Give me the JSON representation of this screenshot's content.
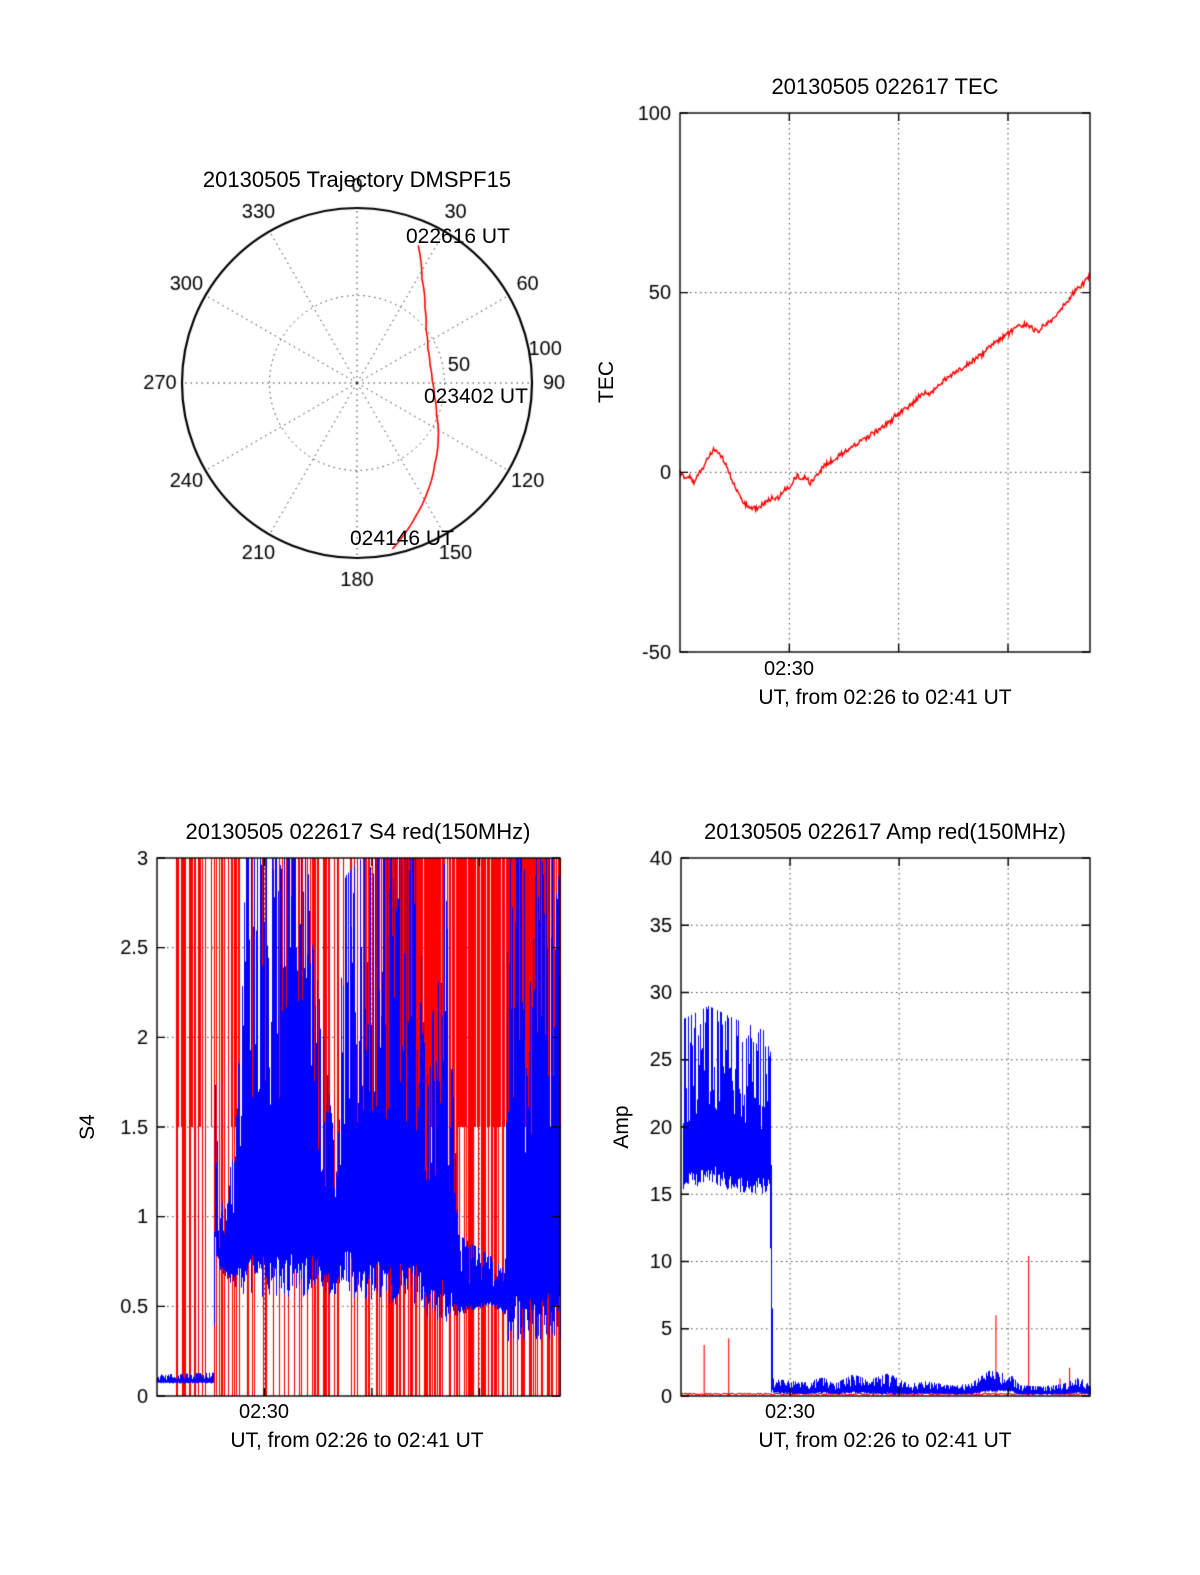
{
  "figure": {
    "background": "#ffffff"
  },
  "colors": {
    "red": "#ff0000",
    "blue": "#0000ff",
    "axis": "#000000",
    "grid": "#4a4a4a"
  },
  "chart_data": [
    {
      "id": "trajectory",
      "type": "line",
      "subtype": "polar",
      "title": "20130505 Trajectory DMSPF15",
      "angle_ticks_deg": [
        0,
        30,
        60,
        90,
        120,
        150,
        180,
        210,
        240,
        270,
        300,
        330
      ],
      "radius_ticks": [
        {
          "r": 50,
          "label": "50"
        },
        {
          "r": 100,
          "label": "100"
        }
      ],
      "rmax": 100,
      "series": [
        {
          "name": "satellite-track",
          "color": "#ff0000",
          "points_az_r": [
            [
              24,
              86
            ],
            [
              32,
              70
            ],
            [
              42,
              58
            ],
            [
              52,
              50
            ],
            [
              64,
              45
            ],
            [
              76,
              43
            ],
            [
              88,
              43
            ],
            [
              100,
              45
            ],
            [
              112,
              49
            ],
            [
              124,
              56
            ],
            [
              136,
              64
            ],
            [
              147,
              74
            ],
            [
              156,
              83
            ],
            [
              163,
              91
            ],
            [
              168,
              97
            ]
          ]
        }
      ],
      "annotations": [
        {
          "label": "022616 UT"
        },
        {
          "label": "023402 UT"
        },
        {
          "label": "024146 UT"
        }
      ]
    },
    {
      "id": "tec",
      "type": "line",
      "title": "20130505 022617 TEC",
      "ylabel": "TEC",
      "xlabel": "UT, from 02:26 to 02:41 UT",
      "x_minutes_range": [
        0,
        15
      ],
      "x_zero_label": "02:26",
      "ylim": [
        -50,
        100
      ],
      "yticks": [
        {
          "v": -50,
          "label": "-50"
        },
        {
          "v": 0,
          "label": "0"
        },
        {
          "v": 50,
          "label": "50"
        },
        {
          "v": 100,
          "label": "100"
        }
      ],
      "ygrid": [
        0,
        50
      ],
      "xticks": [
        {
          "min": 4,
          "label": "02:30"
        }
      ],
      "xgrid_min": [
        4,
        8,
        12
      ],
      "series": [
        {
          "name": "TEC",
          "color": "#ff0000",
          "noise": 0.7,
          "points": [
            [
              0,
              0
            ],
            [
              0.2,
              -2
            ],
            [
              0.35,
              -1
            ],
            [
              0.5,
              -3
            ],
            [
              0.65,
              -1
            ],
            [
              0.8,
              1
            ],
            [
              0.95,
              3
            ],
            [
              1.1,
              5
            ],
            [
              1.25,
              6.5
            ],
            [
              1.4,
              5.5
            ],
            [
              1.55,
              4
            ],
            [
              1.7,
              2
            ],
            [
              1.85,
              -1
            ],
            [
              2.0,
              -4
            ],
            [
              2.2,
              -7
            ],
            [
              2.4,
              -9
            ],
            [
              2.6,
              -10
            ],
            [
              2.8,
              -10
            ],
            [
              3.0,
              -9
            ],
            [
              3.2,
              -8
            ],
            [
              3.4,
              -7
            ],
            [
              3.6,
              -7
            ],
            [
              3.8,
              -5
            ],
            [
              4.0,
              -4
            ],
            [
              4.15,
              -2
            ],
            [
              4.3,
              -1
            ],
            [
              4.45,
              -2
            ],
            [
              4.6,
              -1
            ],
            [
              4.75,
              -3
            ],
            [
              4.9,
              -2
            ],
            [
              5.1,
              0
            ],
            [
              5.3,
              2
            ],
            [
              5.5,
              3
            ],
            [
              5.7,
              4
            ],
            [
              5.9,
              5
            ],
            [
              6.1,
              6
            ],
            [
              6.3,
              7
            ],
            [
              6.5,
              8
            ],
            [
              6.7,
              9
            ],
            [
              6.9,
              10
            ],
            [
              7.1,
              11
            ],
            [
              7.3,
              12
            ],
            [
              7.5,
              13
            ],
            [
              7.7,
              14
            ],
            [
              7.9,
              16
            ],
            [
              8.1,
              17
            ],
            [
              8.3,
              18
            ],
            [
              8.5,
              19
            ],
            [
              8.7,
              21
            ],
            [
              8.9,
              22
            ],
            [
              9.1,
              22
            ],
            [
              9.3,
              23
            ],
            [
              9.5,
              24
            ],
            [
              9.7,
              26
            ],
            [
              9.9,
              27
            ],
            [
              10.1,
              28
            ],
            [
              10.3,
              29
            ],
            [
              10.5,
              30
            ],
            [
              10.7,
              31
            ],
            [
              10.9,
              32
            ],
            [
              11.1,
              33
            ],
            [
              11.3,
              35
            ],
            [
              11.5,
              36
            ],
            [
              11.7,
              37
            ],
            [
              11.9,
              38
            ],
            [
              12.1,
              39
            ],
            [
              12.3,
              40
            ],
            [
              12.5,
              41
            ],
            [
              12.7,
              41
            ],
            [
              12.9,
              40
            ],
            [
              13.1,
              39
            ],
            [
              13.3,
              41
            ],
            [
              13.5,
              42
            ],
            [
              13.7,
              43
            ],
            [
              13.9,
              45
            ],
            [
              14.1,
              47
            ],
            [
              14.3,
              49
            ],
            [
              14.5,
              51
            ],
            [
              14.7,
              52
            ],
            [
              14.9,
              54
            ],
            [
              15,
              55
            ]
          ]
        }
      ]
    },
    {
      "id": "s4",
      "type": "line",
      "title": "20130505 022617 S4 red(150MHz)",
      "ylabel": "S4",
      "xlabel": "UT, from 02:26 to 02:41 UT",
      "x_minutes_range": [
        0,
        15
      ],
      "x_zero_label": "02:26",
      "ylim": [
        0,
        3
      ],
      "yticks": [
        {
          "v": 0,
          "label": "0"
        },
        {
          "v": 0.5,
          "label": "0.5"
        },
        {
          "v": 1,
          "label": "1"
        },
        {
          "v": 1.5,
          "label": "1.5"
        },
        {
          "v": 2,
          "label": "2"
        },
        {
          "v": 2.5,
          "label": "2.5"
        },
        {
          "v": 3,
          "label": "3"
        }
      ],
      "ygrid": [
        0.5,
        1,
        1.5,
        2,
        2.5
      ],
      "xticks": [
        {
          "min": 4,
          "label": "02:30"
        }
      ],
      "xgrid_min": [
        4,
        8,
        12
      ],
      "series": [
        {
          "name": "S4-red-saturated",
          "color": "#ff0000",
          "style": "vlines",
          "vline_sets": [
            {
              "t_start": 0.7,
              "t_end": 15,
              "count": 150,
              "ymin": 0,
              "ymax": 3
            },
            {
              "t_start": 0.7,
              "t_end": 15,
              "count": 80,
              "ymin": 1.5,
              "ymax": 3
            },
            {
              "t_start": 8.0,
              "t_end": 15,
              "count": 170,
              "ymin": 1.5,
              "ymax": 3
            },
            {
              "t_start": 8.3,
              "t_end": 15,
              "count": 60,
              "ymin": 0,
              "ymax": 3
            }
          ]
        },
        {
          "name": "S4-blue",
          "color": "#0000ff",
          "style": "noise-band",
          "envelope": [
            [
              0,
              0.07,
              0.12
            ],
            [
              2.1,
              0.07,
              0.13
            ],
            [
              2.15,
              0.8,
              1.95
            ],
            [
              2.3,
              0.7,
              1.0
            ],
            [
              2.9,
              0.6,
              1.4
            ],
            [
              3.3,
              0.55,
              3
            ],
            [
              5.7,
              0.55,
              3
            ],
            [
              5.9,
              0.6,
              2.4
            ],
            [
              6.6,
              0.55,
              1.4
            ],
            [
              7.0,
              0.6,
              2.9
            ],
            [
              7.6,
              0.5,
              3
            ],
            [
              9.7,
              0.5,
              3
            ],
            [
              10.0,
              0.45,
              1.7
            ],
            [
              10.7,
              0.4,
              3
            ],
            [
              11.2,
              0.45,
              0.9
            ],
            [
              12.4,
              0.5,
              0.78
            ],
            [
              12.95,
              0.45,
              0.7
            ],
            [
              13.05,
              0.3,
              3
            ],
            [
              15,
              0.3,
              3
            ]
          ]
        }
      ]
    },
    {
      "id": "amp",
      "type": "line",
      "title": "20130505 022617 Amp red(150MHz)",
      "ylabel": "Amp",
      "xlabel": "UT, from 02:26 to 02:41 UT",
      "x_minutes_range": [
        0,
        15
      ],
      "x_zero_label": "02:26",
      "ylim": [
        0,
        40
      ],
      "yticks": [
        {
          "v": 0,
          "label": "0"
        },
        {
          "v": 5,
          "label": "5"
        },
        {
          "v": 10,
          "label": "10"
        },
        {
          "v": 15,
          "label": "15"
        },
        {
          "v": 20,
          "label": "20"
        },
        {
          "v": 25,
          "label": "25"
        },
        {
          "v": 30,
          "label": "30"
        },
        {
          "v": 35,
          "label": "35"
        },
        {
          "v": 40,
          "label": "40"
        }
      ],
      "ygrid": [
        5,
        10,
        15,
        20,
        25,
        30,
        35
      ],
      "xticks": [
        {
          "min": 4,
          "label": "02:30"
        }
      ],
      "xgrid_min": [
        4,
        8,
        12
      ],
      "series": [
        {
          "name": "Amp-red",
          "color": "#ff0000",
          "style": "baseline-spikes",
          "baseline": 0.15,
          "spikes": [
            [
              0.85,
              3.8
            ],
            [
              1.75,
              4.3
            ],
            [
              11.55,
              6.0
            ],
            [
              12.75,
              10.4
            ],
            [
              13.9,
              1.3
            ],
            [
              14.25,
              2.1
            ],
            [
              14.7,
              1.0
            ]
          ]
        },
        {
          "name": "Amp-blue",
          "color": "#0000ff",
          "style": "noise-band",
          "envelope": [
            [
              0.05,
              15,
              28
            ],
            [
              1.0,
              16,
              29
            ],
            [
              2.0,
              15,
              28
            ],
            [
              3.25,
              15,
              27
            ],
            [
              3.3,
              0.2,
              22
            ],
            [
              3.35,
              0.2,
              1.3
            ],
            [
              4.5,
              0.1,
              1.0
            ],
            [
              5.2,
              0.2,
              1.4
            ],
            [
              5.6,
              0.1,
              0.9
            ],
            [
              6.3,
              0.2,
              1.6
            ],
            [
              6.9,
              0.15,
              1.2
            ],
            [
              7.6,
              0.1,
              1.7
            ],
            [
              8.3,
              0.1,
              0.9
            ],
            [
              9.0,
              0.15,
              1.1
            ],
            [
              9.8,
              0.1,
              0.8
            ],
            [
              10.6,
              0.1,
              0.9
            ],
            [
              11.3,
              0.3,
              1.9
            ],
            [
              12.1,
              0.3,
              1.6
            ],
            [
              12.4,
              0.1,
              0.8
            ],
            [
              13.2,
              0.1,
              0.7
            ],
            [
              14.0,
              0.1,
              0.9
            ],
            [
              14.6,
              0.2,
              1.4
            ],
            [
              15,
              0.1,
              0.8
            ]
          ]
        }
      ]
    }
  ]
}
